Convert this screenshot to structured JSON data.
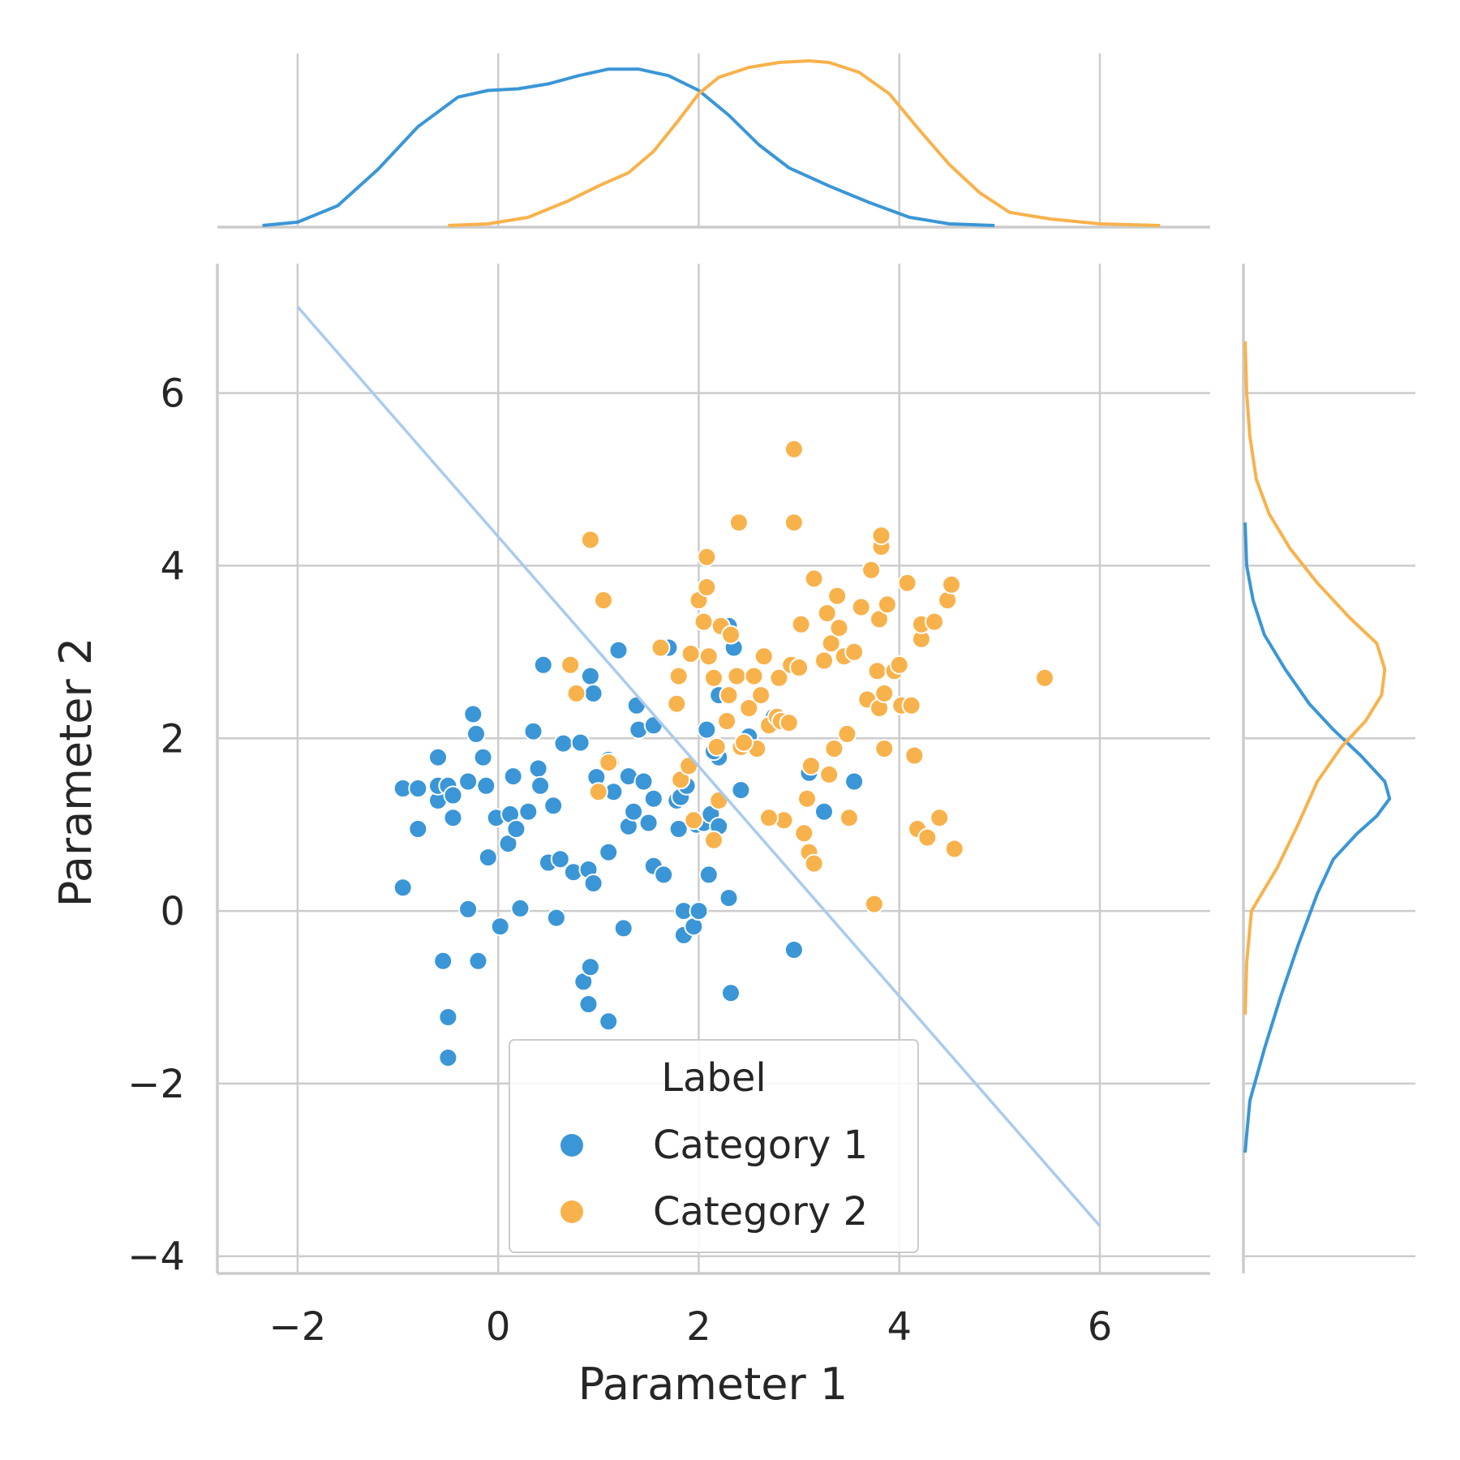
{
  "chart_data": {
    "type": "scatter",
    "xlabel": "Parameter 1",
    "ylabel": "Parameter 2",
    "xlim": [
      -2.8,
      7.1
    ],
    "ylim": [
      -4.2,
      7.5
    ],
    "x_ticks": [
      -2,
      0,
      2,
      4,
      6
    ],
    "y_ticks": [
      -4,
      -2,
      0,
      2,
      4,
      6
    ],
    "x_tick_labels": [
      "−2",
      "0",
      "2",
      "4",
      "6"
    ],
    "y_tick_labels": [
      "−4",
      "−2",
      "0",
      "2",
      "4",
      "6"
    ],
    "grid": true,
    "legend": {
      "title": "Label",
      "placement": "lower-center",
      "entries": [
        "Category 1",
        "Category 2"
      ]
    },
    "colors": {
      "Category 1": "#3a96d6",
      "Category 2": "#f8b24c",
      "line": "#a9cbee"
    },
    "line": {
      "x": [
        -2,
        6
      ],
      "y": [
        7.0,
        -3.65
      ]
    },
    "series": [
      {
        "name": "Category 1",
        "points": [
          [
            -0.95,
            1.42
          ],
          [
            -0.95,
            0.27
          ],
          [
            -0.8,
            1.42
          ],
          [
            -0.8,
            0.95
          ],
          [
            -0.6,
            1.28
          ],
          [
            -0.6,
            1.45
          ],
          [
            -0.6,
            1.78
          ],
          [
            -0.55,
            -0.58
          ],
          [
            -0.5,
            1.45
          ],
          [
            -0.45,
            1.34
          ],
          [
            -0.45,
            1.08
          ],
          [
            -0.5,
            -1.23
          ],
          [
            -0.5,
            -1.7
          ],
          [
            -0.3,
            1.5
          ],
          [
            -0.3,
            0.02
          ],
          [
            -0.25,
            2.28
          ],
          [
            -0.22,
            2.05
          ],
          [
            -0.2,
            -0.58
          ],
          [
            -0.15,
            1.78
          ],
          [
            -0.12,
            1.45
          ],
          [
            -0.1,
            0.62
          ],
          [
            -0.02,
            1.08
          ],
          [
            0.02,
            -0.18
          ],
          [
            0.1,
            0.78
          ],
          [
            0.12,
            1.12
          ],
          [
            0.15,
            1.56
          ],
          [
            0.18,
            0.95
          ],
          [
            0.22,
            0.03
          ],
          [
            0.3,
            1.15
          ],
          [
            0.35,
            2.08
          ],
          [
            0.4,
            1.65
          ],
          [
            0.42,
            1.45
          ],
          [
            0.45,
            2.85
          ],
          [
            0.5,
            0.56
          ],
          [
            0.55,
            1.22
          ],
          [
            0.58,
            -0.08
          ],
          [
            0.62,
            0.6
          ],
          [
            0.65,
            1.94
          ],
          [
            0.75,
            0.45
          ],
          [
            0.82,
            1.95
          ],
          [
            0.85,
            -0.82
          ],
          [
            0.9,
            0.48
          ],
          [
            0.9,
            -1.08
          ],
          [
            0.92,
            -0.65
          ],
          [
            0.92,
            2.72
          ],
          [
            0.95,
            0.32
          ],
          [
            0.95,
            2.52
          ],
          [
            0.98,
            1.55
          ],
          [
            1.1,
            1.75
          ],
          [
            1.1,
            0.68
          ],
          [
            1.1,
            -1.28
          ],
          [
            1.15,
            1.38
          ],
          [
            1.2,
            3.02
          ],
          [
            1.25,
            -0.2
          ],
          [
            1.3,
            1.56
          ],
          [
            1.3,
            0.98
          ],
          [
            1.35,
            1.15
          ],
          [
            1.38,
            2.38
          ],
          [
            1.4,
            2.1
          ],
          [
            1.45,
            1.5
          ],
          [
            1.5,
            1.02
          ],
          [
            1.55,
            2.15
          ],
          [
            1.55,
            1.3
          ],
          [
            1.55,
            0.52
          ],
          [
            1.65,
            0.42
          ],
          [
            1.7,
            3.05
          ],
          [
            1.78,
            1.28
          ],
          [
            1.8,
            0.95
          ],
          [
            1.82,
            1.32
          ],
          [
            1.85,
            -0.28
          ],
          [
            1.85,
            0.0
          ],
          [
            1.88,
            1.45
          ],
          [
            1.95,
            -0.18
          ],
          [
            1.98,
            1.0
          ],
          [
            2.0,
            0.0
          ],
          [
            2.05,
            1.02
          ],
          [
            2.08,
            2.1
          ],
          [
            2.1,
            0.42
          ],
          [
            2.12,
            1.12
          ],
          [
            2.2,
            1.78
          ],
          [
            2.2,
            0.98
          ],
          [
            2.3,
            0.15
          ],
          [
            2.32,
            -0.95
          ],
          [
            2.35,
            3.05
          ],
          [
            2.42,
            1.4
          ],
          [
            2.5,
            2.02
          ],
          [
            2.95,
            -0.45
          ],
          [
            3.1,
            1.6
          ],
          [
            3.25,
            1.15
          ],
          [
            3.55,
            1.5
          ],
          [
            2.2,
            2.5
          ],
          [
            2.3,
            3.3
          ],
          [
            2.75,
            2.25
          ],
          [
            2.15,
            1.85
          ]
        ]
      },
      {
        "name": "Category 2",
        "points": [
          [
            0.72,
            2.85
          ],
          [
            0.78,
            2.52
          ],
          [
            0.92,
            4.3
          ],
          [
            1.0,
            1.38
          ],
          [
            1.05,
            3.6
          ],
          [
            1.12,
            1.72
          ],
          [
            1.62,
            3.05
          ],
          [
            1.78,
            2.4
          ],
          [
            1.8,
            2.72
          ],
          [
            1.82,
            1.52
          ],
          [
            1.9,
            1.68
          ],
          [
            1.92,
            2.98
          ],
          [
            1.95,
            1.05
          ],
          [
            2.0,
            3.6
          ],
          [
            2.05,
            3.35
          ],
          [
            2.08,
            4.1
          ],
          [
            2.08,
            3.75
          ],
          [
            2.1,
            2.95
          ],
          [
            2.15,
            2.7
          ],
          [
            2.15,
            0.82
          ],
          [
            2.18,
            1.9
          ],
          [
            2.2,
            1.28
          ],
          [
            2.22,
            3.3
          ],
          [
            2.28,
            2.2
          ],
          [
            2.3,
            2.5
          ],
          [
            2.32,
            3.2
          ],
          [
            2.38,
            2.72
          ],
          [
            2.4,
            4.5
          ],
          [
            2.42,
            1.9
          ],
          [
            2.5,
            2.35
          ],
          [
            2.55,
            2.72
          ],
          [
            2.58,
            1.88
          ],
          [
            2.62,
            2.5
          ],
          [
            2.65,
            2.95
          ],
          [
            2.7,
            2.15
          ],
          [
            2.78,
            2.25
          ],
          [
            2.8,
            2.7
          ],
          [
            2.82,
            2.2
          ],
          [
            2.85,
            1.05
          ],
          [
            2.9,
            2.18
          ],
          [
            2.92,
            2.85
          ],
          [
            2.95,
            5.35
          ],
          [
            2.95,
            4.5
          ],
          [
            3.0,
            2.82
          ],
          [
            3.02,
            3.32
          ],
          [
            3.05,
            0.9
          ],
          [
            3.08,
            1.3
          ],
          [
            3.1,
            0.68
          ],
          [
            3.12,
            1.68
          ],
          [
            3.15,
            0.55
          ],
          [
            3.15,
            3.85
          ],
          [
            3.25,
            2.9
          ],
          [
            3.28,
            3.45
          ],
          [
            3.3,
            1.58
          ],
          [
            3.32,
            3.1
          ],
          [
            3.35,
            1.88
          ],
          [
            3.38,
            3.65
          ],
          [
            3.4,
            3.28
          ],
          [
            3.45,
            2.95
          ],
          [
            3.48,
            2.05
          ],
          [
            3.5,
            1.08
          ],
          [
            3.55,
            3.0
          ],
          [
            3.62,
            3.52
          ],
          [
            3.68,
            2.45
          ],
          [
            3.72,
            3.95
          ],
          [
            3.75,
            0.08
          ],
          [
            3.78,
            2.78
          ],
          [
            3.8,
            2.35
          ],
          [
            3.8,
            3.38
          ],
          [
            3.82,
            4.22
          ],
          [
            3.82,
            4.35
          ],
          [
            3.85,
            2.52
          ],
          [
            3.85,
            1.88
          ],
          [
            3.88,
            3.55
          ],
          [
            3.95,
            2.78
          ],
          [
            4.0,
            2.85
          ],
          [
            4.02,
            2.38
          ],
          [
            4.08,
            3.8
          ],
          [
            4.12,
            2.38
          ],
          [
            4.15,
            1.8
          ],
          [
            4.18,
            0.95
          ],
          [
            4.22,
            3.15
          ],
          [
            4.22,
            3.32
          ],
          [
            4.28,
            0.85
          ],
          [
            4.35,
            3.35
          ],
          [
            4.4,
            1.08
          ],
          [
            4.48,
            3.6
          ],
          [
            4.52,
            3.78
          ],
          [
            4.55,
            0.72
          ],
          [
            5.45,
            2.7
          ],
          [
            1.1,
            1.72
          ],
          [
            2.45,
            1.95
          ],
          [
            2.7,
            1.08
          ]
        ]
      }
    ],
    "top_kde": [
      {
        "name": "Category 1",
        "x": [
          -2.35,
          -2.0,
          -1.6,
          -1.2,
          -0.8,
          -0.4,
          -0.1,
          0.2,
          0.5,
          0.8,
          1.1,
          1.4,
          1.7,
          2.0,
          2.3,
          2.6,
          2.9,
          3.3,
          3.7,
          4.1,
          4.5,
          4.95
        ],
        "y": [
          0.0,
          0.02,
          0.12,
          0.34,
          0.6,
          0.78,
          0.82,
          0.83,
          0.86,
          0.91,
          0.95,
          0.95,
          0.91,
          0.82,
          0.67,
          0.49,
          0.35,
          0.24,
          0.14,
          0.05,
          0.01,
          0.0
        ]
      },
      {
        "name": "Category 2",
        "x": [
          -0.5,
          -0.1,
          0.3,
          0.7,
          1.0,
          1.3,
          1.55,
          1.8,
          2.0,
          2.2,
          2.5,
          2.8,
          3.1,
          3.3,
          3.6,
          3.9,
          4.2,
          4.5,
          4.8,
          5.1,
          5.5,
          6.0,
          6.6
        ],
        "y": [
          0.0,
          0.01,
          0.05,
          0.15,
          0.24,
          0.32,
          0.45,
          0.64,
          0.8,
          0.9,
          0.96,
          0.99,
          1.0,
          0.99,
          0.93,
          0.8,
          0.58,
          0.37,
          0.2,
          0.08,
          0.04,
          0.01,
          0.0
        ]
      }
    ],
    "right_kde": [
      {
        "name": "Category 1",
        "y": [
          -2.8,
          -2.2,
          -1.6,
          -1.0,
          -0.4,
          0.2,
          0.6,
          0.9,
          1.1,
          1.3,
          1.5,
          1.8,
          2.1,
          2.4,
          2.8,
          3.2,
          3.6,
          4.0,
          4.5
        ],
        "x": [
          0.0,
          0.03,
          0.12,
          0.22,
          0.33,
          0.45,
          0.55,
          0.7,
          0.82,
          0.9,
          0.87,
          0.72,
          0.55,
          0.4,
          0.25,
          0.12,
          0.05,
          0.01,
          0.0
        ]
      },
      {
        "name": "Category 2",
        "y": [
          -1.2,
          -0.6,
          0.0,
          0.5,
          1.0,
          1.5,
          1.9,
          2.2,
          2.5,
          2.8,
          3.1,
          3.4,
          3.8,
          4.2,
          4.6,
          5.0,
          5.5,
          6.0,
          6.6
        ],
        "x": [
          0.0,
          0.01,
          0.04,
          0.2,
          0.33,
          0.45,
          0.6,
          0.75,
          0.85,
          0.87,
          0.82,
          0.65,
          0.45,
          0.28,
          0.15,
          0.07,
          0.03,
          0.01,
          0.0
        ]
      }
    ]
  }
}
